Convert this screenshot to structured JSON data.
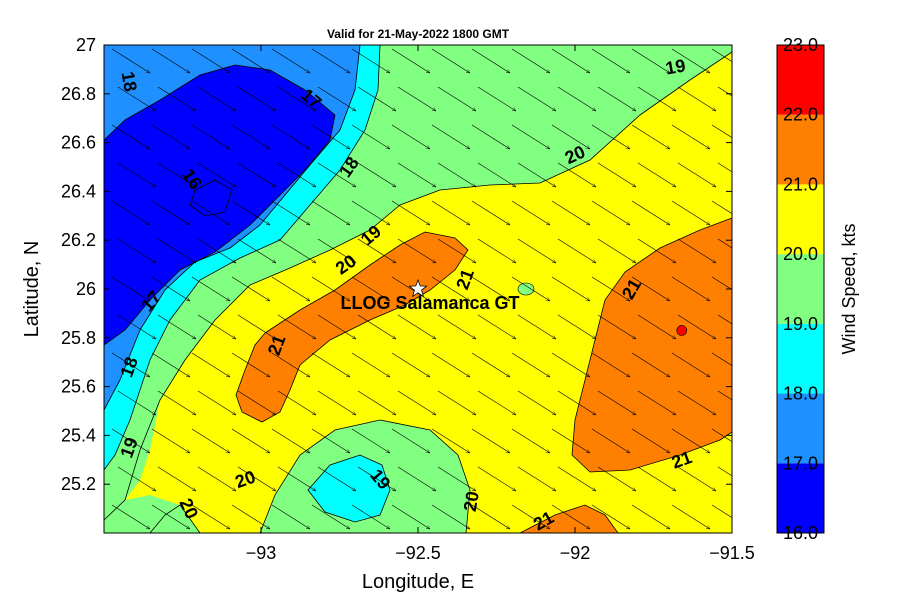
{
  "chart_data": {
    "type": "contour_map",
    "title": "Valid for 21-May-2022 1800 GMT",
    "xlabel": "Longitude, E",
    "ylabel": "Latitude, N",
    "xlim": [
      -93.5,
      -91.5
    ],
    "ylim": [
      25.0,
      27.0
    ],
    "x_ticks": [
      -93,
      -92.5,
      -92,
      -91.5
    ],
    "x_tick_labels": [
      "−93",
      "−92.5",
      "−92",
      "−91.5"
    ],
    "y_ticks": [
      25.2,
      25.4,
      25.6,
      25.8,
      26.0,
      26.2,
      26.4,
      26.6,
      26.8,
      27.0
    ],
    "y_tick_labels": [
      "25.2",
      "25.4",
      "25.6",
      "25.8",
      "26",
      "26.2",
      "26.4",
      "26.6",
      "26.8",
      "27"
    ],
    "colorbar": {
      "label": "Wind Speed, kts",
      "ticks": [
        "16.0",
        "17.0",
        "18.0",
        "19.0",
        "20.0",
        "21.0",
        "22.0",
        "23.0"
      ],
      "colors": [
        "#0000ff",
        "#1e90ff",
        "#00ffff",
        "#80ff80",
        "#ffff00",
        "#ff8000",
        "#ff0000"
      ]
    },
    "contour_labels": [
      {
        "text": "18",
        "lon": -93.42,
        "lat": 26.85,
        "rotate": 80
      },
      {
        "text": "17",
        "lon": -92.84,
        "lat": 26.78,
        "rotate": 40
      },
      {
        "text": "16",
        "lon": -93.22,
        "lat": 26.45,
        "rotate": 55
      },
      {
        "text": "18",
        "lon": -92.72,
        "lat": 26.5,
        "rotate": -55
      },
      {
        "text": "19",
        "lon": -92.65,
        "lat": 26.22,
        "rotate": -40
      },
      {
        "text": "20",
        "lon": -92.73,
        "lat": 26.1,
        "rotate": -35
      },
      {
        "text": "17",
        "lon": -93.35,
        "lat": 25.95,
        "rotate": -50
      },
      {
        "text": "21",
        "lon": -92.35,
        "lat": 26.04,
        "rotate": -70
      },
      {
        "text": "21",
        "lon": -92.95,
        "lat": 25.77,
        "rotate": -70
      },
      {
        "text": "18",
        "lon": -93.42,
        "lat": 25.68,
        "rotate": -70
      },
      {
        "text": "19",
        "lon": -93.42,
        "lat": 25.35,
        "rotate": -70
      },
      {
        "text": "20",
        "lon": -93.23,
        "lat": 25.1,
        "rotate": 65
      },
      {
        "text": "20",
        "lon": -93.05,
        "lat": 25.22,
        "rotate": -20
      },
      {
        "text": "19",
        "lon": -92.62,
        "lat": 25.22,
        "rotate": 50
      },
      {
        "text": "20",
        "lon": -92.33,
        "lat": 25.13,
        "rotate": -80
      },
      {
        "text": "21",
        "lon": -92.1,
        "lat": 25.05,
        "rotate": -30
      },
      {
        "text": "20",
        "lon": -92.0,
        "lat": 26.55,
        "rotate": -25
      },
      {
        "text": "19",
        "lon": -91.68,
        "lat": 26.91,
        "rotate": -10
      },
      {
        "text": "21",
        "lon": -91.82,
        "lat": 26.0,
        "rotate": -60
      },
      {
        "text": "21",
        "lon": -91.66,
        "lat": 25.3,
        "rotate": -20
      }
    ],
    "station": {
      "name": "LLOG Salamanca GT",
      "lon": -92.5,
      "lat": 26.0
    },
    "max_point": {
      "lon": -91.66,
      "lat": 25.83
    },
    "wind_direction": "from NW toward SE",
    "grid": false
  }
}
